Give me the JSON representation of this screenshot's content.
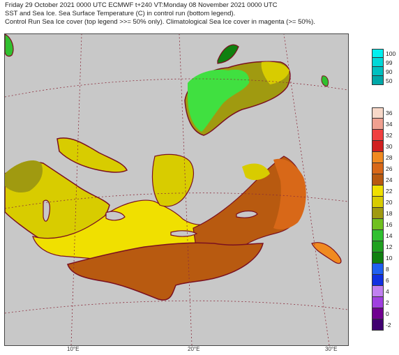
{
  "header": {
    "line1": "Friday 29 October 2021 0000 UTC  ECMWF  t+240  VT:Monday 08 November 2021 0000 UTC",
    "line2": "SST and Sea Ice. Sea Surface Temperature (C) in control run (bottom legend).",
    "line3": "Control Run Sea Ice cover (top legend >>= 50% only). Climatological Sea Ice cover in magenta (>= 50%)."
  },
  "map": {
    "lon_labels": [
      "10°E",
      "20°E",
      "30°E"
    ]
  },
  "ice_legend": {
    "labels": [
      "100",
      "99",
      "90",
      "50"
    ],
    "colors": [
      "#00f0f0",
      "#00d8d8",
      "#00c0c0",
      "#00a8a8"
    ]
  },
  "sst_legend": {
    "labels": [
      "36",
      "34",
      "32",
      "30",
      "28",
      "26",
      "24",
      "22",
      "20",
      "18",
      "16",
      "14",
      "12",
      "10",
      "8",
      "6",
      "4",
      "2",
      "0",
      "-2"
    ],
    "colors": [
      "#f8d8c8",
      "#f0a090",
      "#f04040",
      "#d02020",
      "#f08a20",
      "#d86818",
      "#b85a10",
      "#f0e000",
      "#d8cc00",
      "#a09a10",
      "#70c020",
      "#30c030",
      "#20a020",
      "#108010",
      "#2060f0",
      "#1030e0",
      "#c080f0",
      "#a040e0",
      "#700090",
      "#400070"
    ]
  }
}
